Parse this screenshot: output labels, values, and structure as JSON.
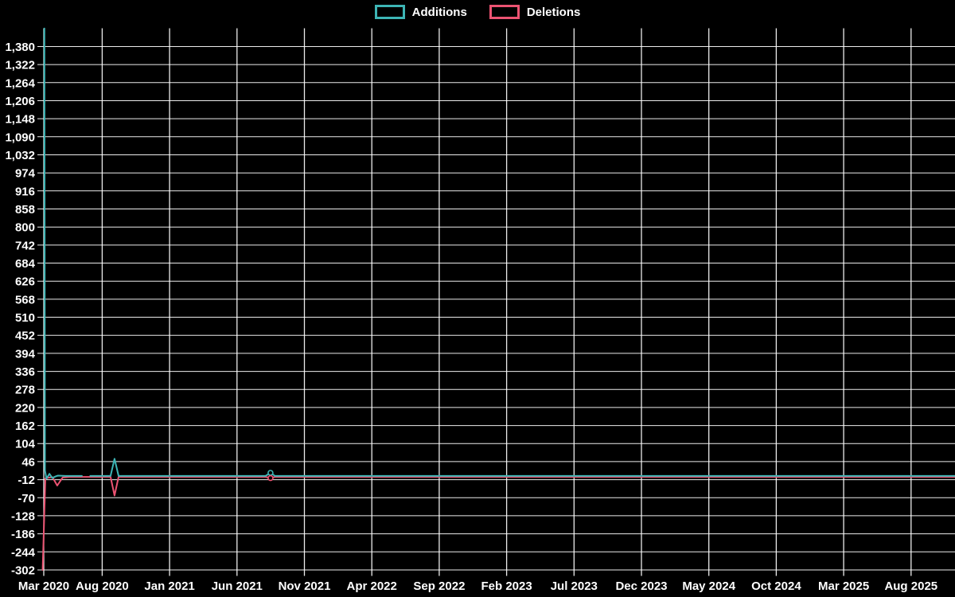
{
  "page": {
    "background_color": "#000000",
    "text_color": "#ffffff"
  },
  "chart_data": {
    "type": "line",
    "title": "",
    "legend_position": "top",
    "grid": true,
    "x_axis": {
      "tick_labels": [
        "Mar 2020",
        "Aug 2020",
        "Jan 2021",
        "Jun 2021",
        "Nov 2021",
        "Apr 2022",
        "Sep 2022",
        "Feb 2023",
        "Jul 2023",
        "Dec 2023",
        "May 2024",
        "Oct 2024",
        "Mar 2025",
        "Aug 2025"
      ],
      "months_between_labeled_ticks": 5
    },
    "y_axis": {
      "tick_labels": [
        "1,380",
        "1,322",
        "1,264",
        "1,206",
        "1,148",
        "1,090",
        "1,032",
        "974",
        "916",
        "858",
        "800",
        "742",
        "684",
        "626",
        "568",
        "510",
        "452",
        "394",
        "336",
        "278",
        "220",
        "162",
        "104",
        "46",
        "-12",
        "-70",
        "-128",
        "-186",
        "-244",
        "-302"
      ],
      "tick_values": [
        1380,
        1322,
        1264,
        1206,
        1148,
        1090,
        1032,
        974,
        916,
        858,
        800,
        742,
        684,
        626,
        568,
        510,
        452,
        394,
        336,
        278,
        220,
        162,
        104,
        46,
        -12,
        -70,
        -128,
        -186,
        -244,
        -302
      ],
      "tick_step": 58,
      "range": [
        -302,
        1438
      ]
    },
    "series": [
      {
        "name": "Additions",
        "color": "#3db5b5",
        "stroke_width": 2,
        "segments": [
          [
            [
              0.05,
              1438
            ],
            [
              0.09,
              18
            ],
            [
              0.2,
              -9
            ],
            [
              0.42,
              7
            ],
            [
              0.63,
              -7
            ],
            [
              0.85,
              -2
            ],
            [
              1.05,
              1
            ],
            [
              1.6,
              0
            ],
            [
              2.83,
              0
            ]
          ],
          [
            [
              3.45,
              0
            ],
            [
              4.95,
              0
            ],
            [
              5.25,
              55
            ],
            [
              5.55,
              0
            ],
            [
              7,
              0
            ],
            [
              16.45,
              0
            ],
            [
              16.82,
              10
            ],
            [
              17.15,
              0
            ],
            [
              18,
              0
            ],
            [
              67.6,
              0
            ]
          ]
        ]
      },
      {
        "name": "Deletions",
        "color": "#ec5372",
        "stroke_width": 2,
        "segments": [
          [
            [
              -0.08,
              -302
            ],
            [
              0.12,
              -8
            ],
            [
              0.4,
              -5
            ],
            [
              0.65,
              -4
            ],
            [
              1.0,
              -31
            ],
            [
              1.4,
              -5
            ],
            [
              1.9,
              -3
            ],
            [
              4.95,
              -3
            ],
            [
              5.25,
              -63
            ],
            [
              5.55,
              -3
            ],
            [
              16.45,
              -3
            ],
            [
              16.82,
              -7
            ],
            [
              17.15,
              -3
            ],
            [
              67.6,
              -3
            ]
          ]
        ]
      }
    ],
    "markers": [
      {
        "series": 0,
        "m": 16.82,
        "v": 10
      },
      {
        "series": 1,
        "m": 16.82,
        "v": -7
      }
    ],
    "notes": "x unit 'm' = months after chart start (late Mar 2020). Large spike at start: Additions ~1438, Deletions ~-302. Second spike ~Sep 2020: Additions ~+55, Deletions ~-63. Small bump ~Aug 2021: Additions ~+10, Deletions ~-7. Flat near zero elsewhere."
  }
}
